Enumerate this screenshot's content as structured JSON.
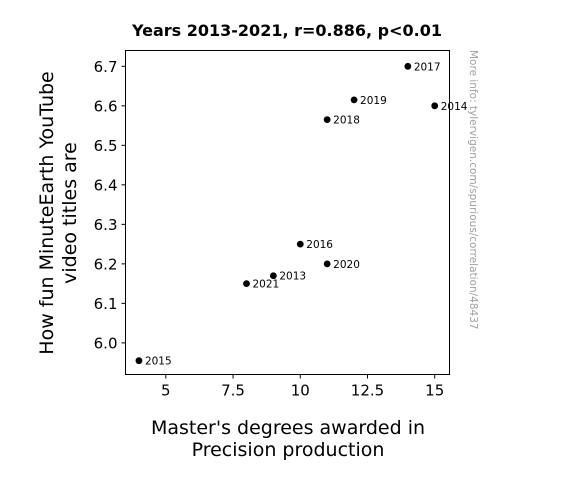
{
  "chart_data": {
    "type": "scatter",
    "title": "Years 2013-2021, r=0.886, p<0.01",
    "xlabel": [
      "Master's degrees awarded in",
      "Precision production"
    ],
    "ylabel": [
      "How fun MinuteEarth YouTube",
      "video titles are"
    ],
    "xlim": [
      3.5,
      15.55
    ],
    "ylim": [
      5.92,
      6.74
    ],
    "xticks": [
      5,
      7.5,
      10,
      12.5,
      15
    ],
    "xtick_labels": [
      "5",
      "7.5",
      "10",
      "12.5",
      "15"
    ],
    "yticks": [
      6.0,
      6.1,
      6.2,
      6.3,
      6.4,
      6.5,
      6.6,
      6.7
    ],
    "ytick_labels": [
      "6.0",
      "6.1",
      "6.2",
      "6.3",
      "6.4",
      "6.5",
      "6.6",
      "6.7"
    ],
    "grid": false,
    "marker_color": "#000000",
    "points": [
      {
        "label": "2013",
        "x": 9,
        "y": 6.17
      },
      {
        "label": "2014",
        "x": 15,
        "y": 6.6
      },
      {
        "label": "2015",
        "x": 4,
        "y": 5.955
      },
      {
        "label": "2016",
        "x": 10,
        "y": 6.25
      },
      {
        "label": "2017",
        "x": 14,
        "y": 6.7
      },
      {
        "label": "2018",
        "x": 11,
        "y": 6.565
      },
      {
        "label": "2019",
        "x": 12,
        "y": 6.615
      },
      {
        "label": "2020",
        "x": 11,
        "y": 6.2
      },
      {
        "label": "2021",
        "x": 8,
        "y": 6.15
      }
    ]
  },
  "watermark": "More info: tylervigen.com/spurious/correlation/48437"
}
